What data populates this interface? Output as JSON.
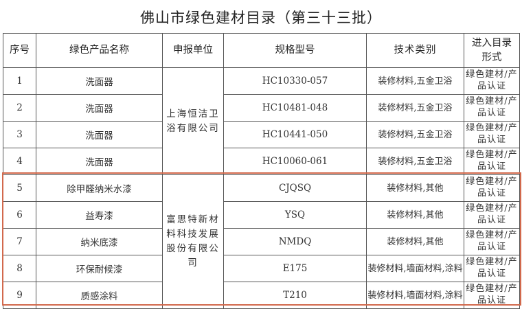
{
  "title": "佛山市绿色建材目录（第三十三批）",
  "columns": [
    "序号",
    "绿色产品名称",
    "申报单位",
    "规格型号",
    "技术类别",
    "进入目录形式"
  ],
  "companies": [
    "上海恒洁卫浴有限公司",
    "富思特新材料科技发展股份有限公司"
  ],
  "rows": [
    {
      "no": "1",
      "name": "洗面器",
      "model": "HC10330-057",
      "tech": "装修材料,五金卫浴",
      "form": "绿色建材/产品认证"
    },
    {
      "no": "2",
      "name": "洗面器",
      "model": "HC10481-048",
      "tech": "装修材料,五金卫浴",
      "form": "绿色建材/产品认证"
    },
    {
      "no": "3",
      "name": "洗面器",
      "model": "HC10441-050",
      "tech": "装修材料,五金卫浴",
      "form": "绿色建材/产品认证"
    },
    {
      "no": "4",
      "name": "洗面器",
      "model": "HC10060-061",
      "tech": "装修材料,五金卫浴",
      "form": "绿色建材/产品认证"
    },
    {
      "no": "5",
      "name": "除甲醛纳米水漆",
      "model": "CJQSQ",
      "tech": "装修材料,其他",
      "form": "绿色建材/产品认证"
    },
    {
      "no": "6",
      "name": "益寿漆",
      "model": "YSQ",
      "tech": "装修材料,其他",
      "form": "绿色建材/产品认证"
    },
    {
      "no": "7",
      "name": "纳米底漆",
      "model": "NMDQ",
      "tech": "装修材料,其他",
      "form": "绿色建材/产品认证"
    },
    {
      "no": "8",
      "name": "环保耐候漆",
      "model": "E175",
      "tech": "装修材料,墙面材料,涂料",
      "form": "绿色建材/产品认证"
    },
    {
      "no": "9",
      "name": "质感涂料",
      "model": "T210",
      "tech": "装修材料,墙面材料,涂料",
      "form": "绿色建材/产品认证"
    }
  ],
  "highlight_color": "#d2694c"
}
